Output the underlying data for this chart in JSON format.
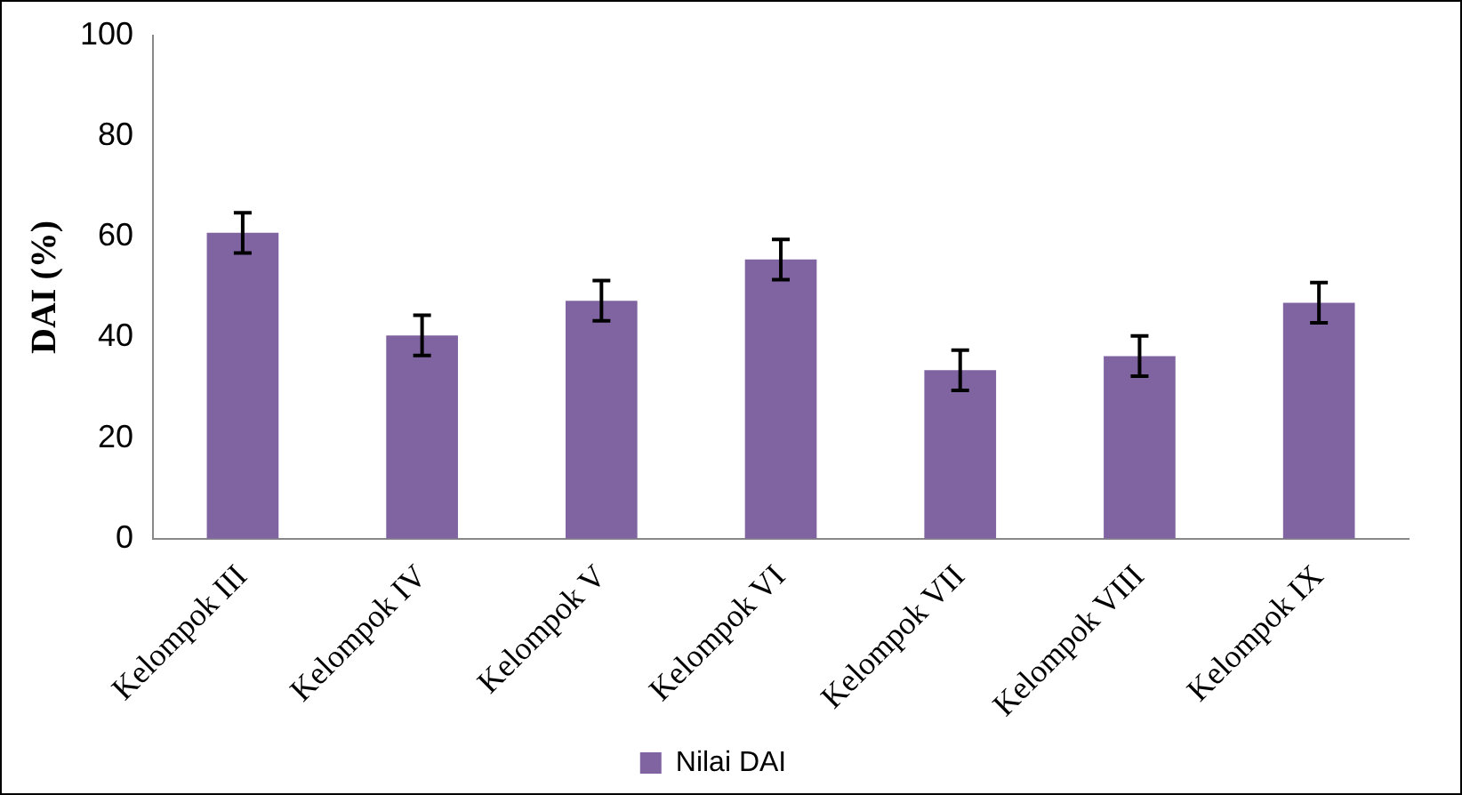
{
  "chart_data": {
    "type": "bar",
    "ylabel": "DAI (%)",
    "categories": [
      "Kelompok III",
      "Kelompok IV",
      "Kelompok V",
      "Kelompok VI",
      "Kelompok VII",
      "Kelompok VIII",
      "Kelompok IX"
    ],
    "series": [
      {
        "name": "Nilai DAI",
        "color": "#8064a2",
        "values": [
          60.8,
          40.4,
          47.3,
          55.5,
          33.5,
          36.3,
          46.9
        ],
        "errors": [
          4,
          4,
          4,
          4,
          4,
          4,
          4
        ]
      }
    ],
    "ylim": [
      0,
      100
    ],
    "yticks": [
      0,
      20,
      40,
      60,
      80,
      100
    ],
    "grid": false,
    "legend": "bottom"
  }
}
